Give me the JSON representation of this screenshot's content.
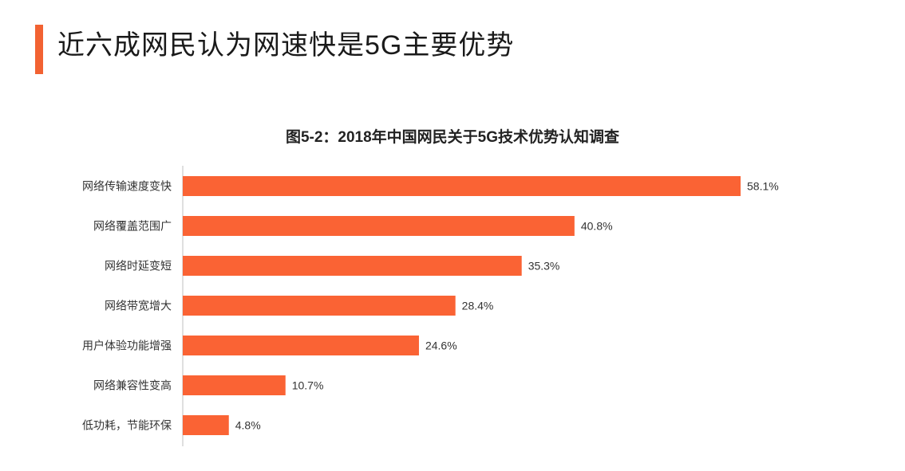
{
  "header": {
    "title": "近六成网民认为网速快是5G主要优势",
    "accent_color": "#f26232"
  },
  "chart_data": {
    "type": "bar",
    "orientation": "horizontal",
    "title": "图5-2：2018年中国网民关于5G技术优势认知调查",
    "categories": [
      "网络传输速度变快",
      "网络覆盖范围广",
      "网络时延变短",
      "网络带宽增大",
      "用户体验功能增强",
      "网络兼容性变高",
      "低功耗，节能环保"
    ],
    "values": [
      58.1,
      40.8,
      35.3,
      28.4,
      24.6,
      10.7,
      4.8
    ],
    "value_labels": [
      "58.1%",
      "40.8%",
      "35.3%",
      "28.4%",
      "24.6%",
      "10.7%",
      "4.8%"
    ],
    "unit": "%",
    "bar_color": "#fa6334",
    "grid": false,
    "legend": "none",
    "xlim": [
      0,
      58.1
    ]
  }
}
